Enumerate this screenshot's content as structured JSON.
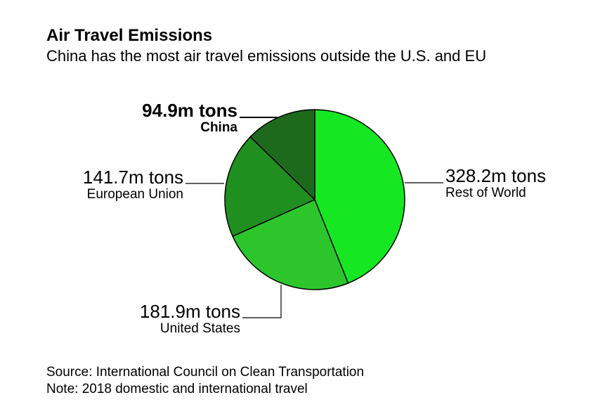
{
  "header": {
    "title": "Air Travel Emissions",
    "subtitle": "China has the most air travel emissions outside the U.S. and EU"
  },
  "footer": {
    "source": "Source: International Council on Clean Transportation",
    "note": "Note: 2018 domestic and international travel"
  },
  "chart_data": {
    "type": "pie",
    "title": "Air Travel Emissions",
    "subtitle": "China has the most air travel emissions outside the U.S. and EU",
    "unit": "m tons",
    "slices": [
      {
        "category": "Rest of World",
        "value": 328.2,
        "label": "328.2m tons",
        "color": "#15e823"
      },
      {
        "category": "United States",
        "value": 181.9,
        "label": "181.9m tons",
        "color": "#2cc62c"
      },
      {
        "category": "European Union",
        "value": 141.7,
        "label": "141.7m tons",
        "color": "#1f8f1f"
      },
      {
        "category": "China",
        "value": 94.9,
        "label": "94.9m tons",
        "color": "#1d6a1d",
        "highlight": true
      }
    ]
  }
}
